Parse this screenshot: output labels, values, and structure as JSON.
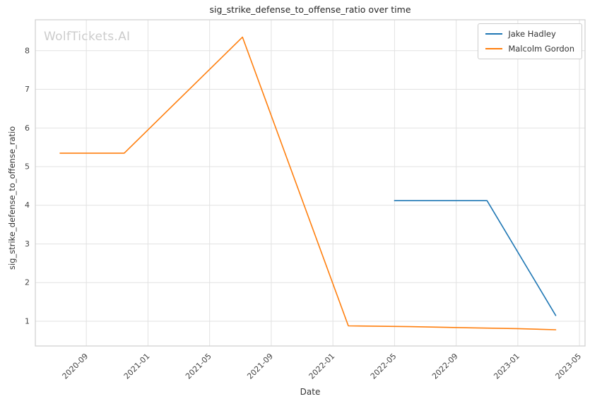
{
  "chart_data": {
    "type": "line",
    "title": "sig_strike_defense_to_offense_ratio over time",
    "xlabel": "Date",
    "ylabel": "sig_strike_defense_to_offense_ratio",
    "watermark": "WolfTickets.AI",
    "grid": true,
    "legend_position": "upper right",
    "x_ticks": [
      "2020-09",
      "2021-01",
      "2021-05",
      "2021-09",
      "2022-01",
      "2022-05",
      "2022-09",
      "2023-01",
      "2023-05"
    ],
    "y_ticks": [
      1,
      2,
      3,
      4,
      5,
      6,
      7,
      8
    ],
    "xlim": [
      "2020-05-22",
      "2023-05-12"
    ],
    "ylim": [
      0.36,
      8.8
    ],
    "series": [
      {
        "name": "Jake Hadley",
        "color": "#1f77b4",
        "points": [
          [
            "2022-05-01",
            4.12
          ],
          [
            "2022-11-01",
            4.12
          ],
          [
            "2023-03-15",
            1.15
          ]
        ]
      },
      {
        "name": "Malcolm Gordon",
        "color": "#ff7f0e",
        "points": [
          [
            "2020-07-10",
            5.35
          ],
          [
            "2020-11-15",
            5.35
          ],
          [
            "2021-07-05",
            8.35
          ],
          [
            "2022-02-01",
            0.88
          ],
          [
            "2022-06-01",
            0.86
          ],
          [
            "2022-10-01",
            0.83
          ],
          [
            "2023-01-01",
            0.81
          ],
          [
            "2023-03-15",
            0.78
          ]
        ]
      }
    ]
  }
}
